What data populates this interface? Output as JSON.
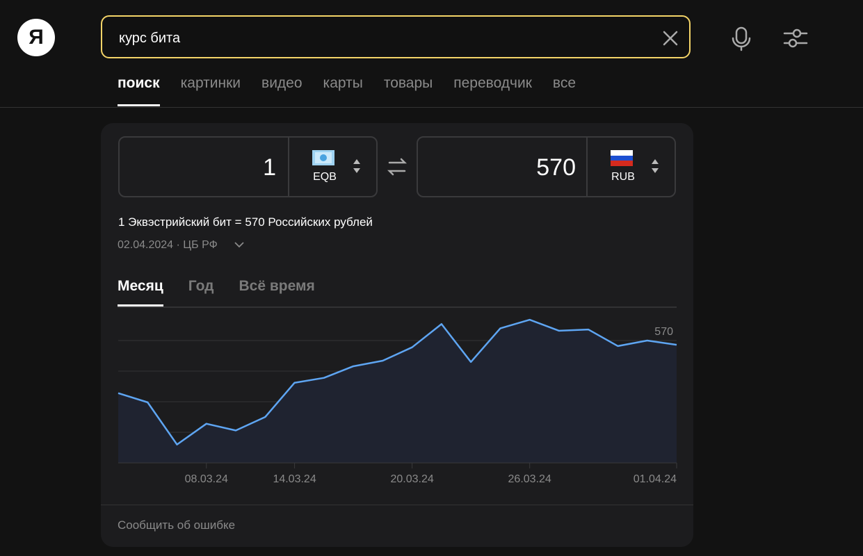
{
  "logo": "Я",
  "search": {
    "query": "курс бита"
  },
  "tabs": [
    "поиск",
    "картинки",
    "видео",
    "карты",
    "товары",
    "переводчик",
    "все"
  ],
  "converter": {
    "from_amount": 1,
    "from_currency": "EQB",
    "to_amount": 570,
    "to_currency": "RUB",
    "rate_text": "1 Эквэстрийский бит = 570 Российских рублей",
    "source": "02.04.2024 · ЦБ РФ"
  },
  "periods": [
    "Месяц",
    "Год",
    "Всё время"
  ],
  "chart_data": {
    "type": "line",
    "categories": [
      null,
      null,
      null,
      "08.03.24",
      null,
      null,
      "14.03.24",
      null,
      null,
      null,
      "20.03.24",
      null,
      null,
      null,
      "26.03.24",
      null,
      null,
      null,
      null,
      "01.04.24"
    ],
    "series": [
      {
        "color": "#5ea5f2",
        "values": [
          561.4,
          559.9,
          553.0,
          556.4,
          555.3,
          557.5,
          563.1,
          563.9,
          565.8,
          566.7,
          568.9,
          572.7,
          566.5,
          572.0,
          573.4,
          571.6,
          571.8,
          569.1,
          570.0,
          569.3
        ]
      }
    ],
    "ylim": [
      550,
      575
    ],
    "yticks": [
      550,
      555,
      560,
      565,
      570
    ],
    "grid": true
  },
  "footer": "Сообщить об ошибке"
}
